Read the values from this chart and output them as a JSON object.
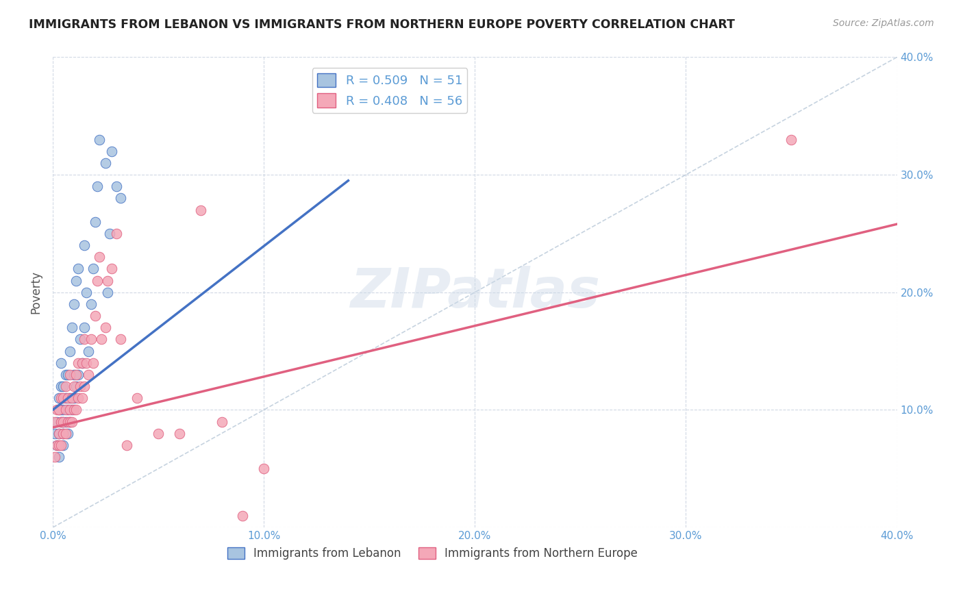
{
  "title": "IMMIGRANTS FROM LEBANON VS IMMIGRANTS FROM NORTHERN EUROPE POVERTY CORRELATION CHART",
  "source": "Source: ZipAtlas.com",
  "ylabel": "Poverty",
  "xlim": [
    0.0,
    0.4
  ],
  "ylim": [
    0.0,
    0.4
  ],
  "xtick_values": [
    0.0,
    0.1,
    0.2,
    0.3,
    0.4
  ],
  "xtick_labels": [
    "0.0%",
    "10.0%",
    "20.0%",
    "30.0%",
    "40.0%"
  ],
  "ytick_values": [
    0.0,
    0.1,
    0.2,
    0.3,
    0.4
  ],
  "ytick_labels_right": [
    "",
    "10.0%",
    "20.0%",
    "30.0%",
    "40.0%"
  ],
  "legend_r1": "R = 0.509",
  "legend_n1": "N = 51",
  "legend_r2": "R = 0.408",
  "legend_n2": "N = 56",
  "color_lebanon": "#a8c4e0",
  "color_northern_europe": "#f4a8b8",
  "color_line_lebanon": "#4472c4",
  "color_line_northern_europe": "#e06080",
  "color_diag": "#b8c8d8",
  "title_color": "#222222",
  "label_color": "#5b9bd5",
  "background_color": "#ffffff",
  "grid_color": "#d0d8e4",
  "watermark": "ZIPatlas",
  "lebanon_scatter_x": [
    0.001,
    0.002,
    0.002,
    0.003,
    0.003,
    0.003,
    0.003,
    0.004,
    0.004,
    0.004,
    0.004,
    0.005,
    0.005,
    0.005,
    0.005,
    0.005,
    0.006,
    0.006,
    0.006,
    0.007,
    0.007,
    0.007,
    0.008,
    0.008,
    0.008,
    0.009,
    0.009,
    0.01,
    0.01,
    0.01,
    0.011,
    0.011,
    0.012,
    0.012,
    0.013,
    0.014,
    0.015,
    0.015,
    0.016,
    0.017,
    0.018,
    0.019,
    0.02,
    0.021,
    0.022,
    0.025,
    0.026,
    0.027,
    0.028,
    0.03,
    0.032
  ],
  "lebanon_scatter_y": [
    0.08,
    0.07,
    0.09,
    0.06,
    0.08,
    0.1,
    0.11,
    0.09,
    0.1,
    0.12,
    0.14,
    0.07,
    0.08,
    0.09,
    0.1,
    0.12,
    0.09,
    0.11,
    0.13,
    0.08,
    0.1,
    0.13,
    0.09,
    0.11,
    0.15,
    0.1,
    0.17,
    0.11,
    0.13,
    0.19,
    0.12,
    0.21,
    0.13,
    0.22,
    0.16,
    0.14,
    0.17,
    0.24,
    0.2,
    0.15,
    0.19,
    0.22,
    0.26,
    0.29,
    0.33,
    0.31,
    0.2,
    0.25,
    0.32,
    0.29,
    0.28
  ],
  "northern_europe_scatter_x": [
    0.001,
    0.001,
    0.002,
    0.002,
    0.003,
    0.003,
    0.003,
    0.004,
    0.004,
    0.004,
    0.005,
    0.005,
    0.005,
    0.006,
    0.006,
    0.006,
    0.007,
    0.007,
    0.008,
    0.008,
    0.008,
    0.009,
    0.009,
    0.01,
    0.01,
    0.011,
    0.011,
    0.012,
    0.012,
    0.013,
    0.014,
    0.014,
    0.015,
    0.015,
    0.016,
    0.017,
    0.018,
    0.019,
    0.02,
    0.021,
    0.022,
    0.023,
    0.025,
    0.026,
    0.028,
    0.03,
    0.032,
    0.035,
    0.04,
    0.05,
    0.06,
    0.07,
    0.08,
    0.09,
    0.1,
    0.35
  ],
  "northern_europe_scatter_y": [
    0.06,
    0.09,
    0.07,
    0.1,
    0.07,
    0.08,
    0.1,
    0.07,
    0.09,
    0.11,
    0.08,
    0.09,
    0.11,
    0.08,
    0.1,
    0.12,
    0.09,
    0.11,
    0.09,
    0.1,
    0.13,
    0.09,
    0.11,
    0.1,
    0.12,
    0.1,
    0.13,
    0.11,
    0.14,
    0.12,
    0.11,
    0.14,
    0.12,
    0.16,
    0.14,
    0.13,
    0.16,
    0.14,
    0.18,
    0.21,
    0.23,
    0.16,
    0.17,
    0.21,
    0.22,
    0.25,
    0.16,
    0.07,
    0.11,
    0.08,
    0.08,
    0.27,
    0.09,
    0.01,
    0.05,
    0.33
  ],
  "line_leb_x0": 0.0,
  "line_leb_y0": 0.1,
  "line_leb_x1": 0.14,
  "line_leb_y1": 0.295,
  "line_ne_x0": 0.0,
  "line_ne_y0": 0.085,
  "line_ne_x1": 0.4,
  "line_ne_y1": 0.258
}
